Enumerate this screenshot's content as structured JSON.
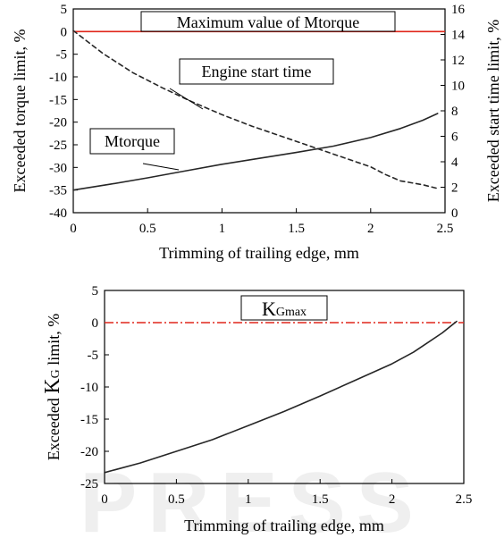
{
  "chart_data": [
    {
      "type": "line",
      "xlabel": "Trimming of trailing edge, mm",
      "ylabel": "Exceeded torque limit, %",
      "y2label": "Exceeded start time limit, %",
      "xlim": [
        0,
        2.5
      ],
      "ylim": [
        -40,
        5
      ],
      "y2lim": [
        0,
        16
      ],
      "xticks": [
        "0",
        "0.5",
        "1",
        "1.5",
        "2",
        "2.5"
      ],
      "yticks": [
        "5",
        "0",
        "-5",
        "-10",
        "-15",
        "-20",
        "-25",
        "-30",
        "-35",
        "-40"
      ],
      "y2ticks": [
        "16",
        "14",
        "12",
        "10",
        "8",
        "6",
        "4",
        "2",
        "0"
      ],
      "grid": false,
      "reference_line": {
        "label": "Maximum value of Mtorque",
        "y": 0,
        "color": "#e0271b",
        "style": "solid"
      },
      "series": [
        {
          "name": "Mtorque",
          "axis": "left",
          "style": "solid",
          "color": "#262626",
          "x": [
            0,
            0.25,
            0.5,
            0.75,
            1.0,
            1.25,
            1.5,
            1.75,
            2.0,
            2.2,
            2.35,
            2.45
          ],
          "y": [
            -35,
            -33.7,
            -32.3,
            -30.8,
            -29.3,
            -28.0,
            -26.7,
            -25.3,
            -23.4,
            -21.4,
            -19.6,
            -18.1
          ]
        },
        {
          "name": "Engine start time",
          "axis": "right",
          "style": "dashed",
          "color": "#262626",
          "x": [
            0,
            0.2,
            0.4,
            0.6,
            0.8,
            1.0,
            1.2,
            1.4,
            1.6,
            1.8,
            2.0,
            2.1,
            2.2,
            2.35,
            2.45
          ],
          "y": [
            14.3,
            12.5,
            11.0,
            9.8,
            8.7,
            7.7,
            6.8,
            6.0,
            5.2,
            4.4,
            3.6,
            3.0,
            2.5,
            2.2,
            1.9
          ]
        }
      ]
    },
    {
      "type": "line",
      "xlabel": "Trimming of trailing edge, mm",
      "ylabel_prefix": "Exceeded ",
      "ylabel_k": "K",
      "ylabel_sub": "G",
      "ylabel_suffix": " limit, %",
      "xlim": [
        0,
        2.5
      ],
      "ylim": [
        -25,
        5
      ],
      "xticks": [
        "0",
        "0.5",
        "1",
        "1.5",
        "2",
        "2.5"
      ],
      "yticks": [
        "5",
        "0",
        "-5",
        "-10",
        "-15",
        "-20",
        "-25"
      ],
      "grid": false,
      "reference_line": {
        "label_main": "K",
        "label_sub": "Gmax",
        "y": 0,
        "color": "#e0271b",
        "style": "dashdot"
      },
      "series": [
        {
          "color": "#262626",
          "style": "solid",
          "x": [
            0,
            0.25,
            0.5,
            0.75,
            1.0,
            1.25,
            1.5,
            1.75,
            2.0,
            2.15,
            2.25,
            2.35,
            2.45
          ],
          "y": [
            -23.3,
            -21.8,
            -20.0,
            -18.2,
            -16.0,
            -13.8,
            -11.4,
            -8.9,
            -6.4,
            -4.6,
            -3.1,
            -1.6,
            0.2
          ]
        }
      ]
    }
  ],
  "watermark": "PRESS"
}
